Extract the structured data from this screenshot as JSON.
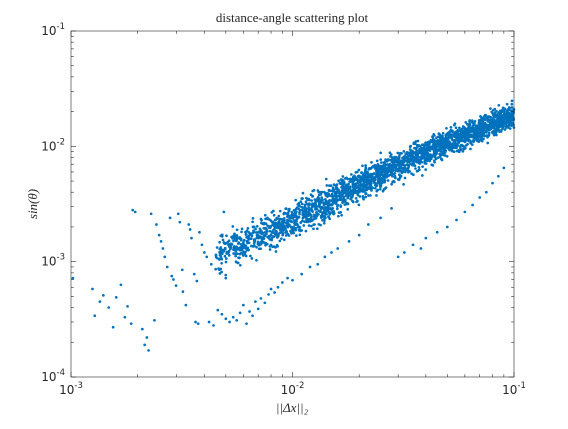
{
  "chart_data": {
    "type": "scatter",
    "title": "distance-angle scattering plot",
    "xlabel": "||Δx||₂",
    "ylabel": "sin(θ)",
    "x_scale": "log",
    "y_scale": "log",
    "xlim": [
      0.001,
      0.1
    ],
    "ylim": [
      0.0001,
      0.1
    ],
    "x_ticks": [
      {
        "value": 0.001,
        "base": "10",
        "exp": "-3"
      },
      {
        "value": 0.01,
        "base": "10",
        "exp": "-2"
      },
      {
        "value": 0.1,
        "base": "10",
        "exp": "-1"
      }
    ],
    "y_ticks": [
      {
        "value": 0.0001,
        "base": "10",
        "exp": "-4"
      },
      {
        "value": 0.001,
        "base": "10",
        "exp": "-3"
      },
      {
        "value": 0.01,
        "base": "10",
        "exp": "-2"
      },
      {
        "value": 0.1,
        "base": "10",
        "exp": "-1"
      }
    ],
    "grid": false,
    "box": true,
    "marker_color": "#0072BD",
    "points": [
      [
        0.00102,
        0.00072
      ],
      [
        0.00125,
        0.00058
      ],
      [
        0.00128,
        0.00034
      ],
      [
        0.00135,
        0.00045
      ],
      [
        0.0014,
        0.00051
      ],
      [
        0.00148,
        0.0004
      ],
      [
        0.00155,
        0.00027
      ],
      [
        0.0016,
        0.00049
      ],
      [
        0.00168,
        0.00063
      ],
      [
        0.00175,
        0.00033
      ],
      [
        0.0018,
        0.00041
      ],
      [
        0.00187,
        0.00029
      ],
      [
        0.0019,
        0.0028
      ],
      [
        0.00195,
        0.0027
      ],
      [
        0.0021,
        0.00026
      ],
      [
        0.00215,
        0.00019
      ],
      [
        0.0022,
        0.00022
      ],
      [
        0.00224,
        0.00017
      ],
      [
        0.0023,
        0.0026
      ],
      [
        0.00238,
        0.00031
      ],
      [
        0.00243,
        0.0021
      ],
      [
        0.0025,
        0.0017
      ],
      [
        0.00255,
        0.0015
      ],
      [
        0.0026,
        0.0013
      ],
      [
        0.00265,
        0.0011
      ],
      [
        0.00272,
        0.0009
      ],
      [
        0.0028,
        0.0024
      ],
      [
        0.00285,
        0.00075
      ],
      [
        0.0029,
        0.0007
      ],
      [
        0.00298,
        0.00062
      ],
      [
        0.00305,
        0.0026
      ],
      [
        0.0031,
        0.0022
      ],
      [
        0.00318,
        0.00085
      ],
      [
        0.0032,
        0.00055
      ],
      [
        0.0033,
        0.00042
      ],
      [
        0.0034,
        0.0021
      ],
      [
        0.00345,
        0.0019
      ],
      [
        0.0035,
        0.0016
      ],
      [
        0.0036,
        0.00078
      ],
      [
        0.00365,
        0.0003
      ],
      [
        0.0037,
        0.00068
      ],
      [
        0.00375,
        0.00029
      ],
      [
        0.0038,
        0.0018
      ],
      [
        0.0039,
        0.0014
      ],
      [
        0.004,
        0.0012
      ],
      [
        0.0041,
        0.0011
      ],
      [
        0.0042,
        0.0003
      ],
      [
        0.0043,
        0.00095
      ],
      [
        0.0044,
        0.00028
      ],
      [
        0.0045,
        0.00086
      ],
      [
        0.0046,
        0.00038
      ],
      [
        0.0047,
        0.00079
      ],
      [
        0.0048,
        0.00035
      ],
      [
        0.0049,
        0.0027
      ],
      [
        0.005,
        0.00032
      ],
      [
        0.0052,
        0.0003
      ],
      [
        0.0054,
        0.00033
      ],
      [
        0.0056,
        0.00031
      ],
      [
        0.0058,
        0.00036
      ],
      [
        0.006,
        0.00042
      ],
      [
        0.0062,
        0.00029
      ],
      [
        0.0064,
        0.00037
      ],
      [
        0.0066,
        0.00034
      ],
      [
        0.0068,
        0.00045
      ],
      [
        0.007,
        0.00039
      ],
      [
        0.0072,
        0.00048
      ],
      [
        0.0075,
        0.00044
      ],
      [
        0.0078,
        0.00052
      ],
      [
        0.008,
        0.00058
      ],
      [
        0.0083,
        0.00054
      ],
      [
        0.0086,
        0.0006
      ],
      [
        0.009,
        0.00066
      ],
      [
        0.0095,
        0.00072
      ],
      [
        0.01,
        0.00069
      ],
      [
        0.011,
        0.00078
      ],
      [
        0.012,
        0.0009
      ],
      [
        0.013,
        0.00095
      ],
      [
        0.014,
        0.0011
      ],
      [
        0.015,
        0.0012
      ],
      [
        0.016,
        0.0013
      ],
      [
        0.018,
        0.0015
      ],
      [
        0.02,
        0.0017
      ],
      [
        0.022,
        0.0021
      ],
      [
        0.025,
        0.0024
      ],
      [
        0.028,
        0.0029
      ],
      [
        0.03,
        0.0011
      ],
      [
        0.032,
        0.0012
      ],
      [
        0.035,
        0.0014
      ],
      [
        0.038,
        0.0013
      ],
      [
        0.04,
        0.0016
      ],
      [
        0.045,
        0.0018
      ],
      [
        0.05,
        0.002
      ],
      [
        0.055,
        0.0023
      ],
      [
        0.06,
        0.0027
      ],
      [
        0.065,
        0.0031
      ],
      [
        0.07,
        0.0036
      ],
      [
        0.075,
        0.004
      ],
      [
        0.08,
        0.0048
      ],
      [
        0.085,
        0.0055
      ],
      [
        0.09,
        0.0065
      ]
    ],
    "cloud": [
      {
        "x": 0.0045,
        "y_center": 0.00115,
        "spread": 0.28
      },
      {
        "x": 0.006,
        "y_center": 0.00145,
        "spread": 0.27
      },
      {
        "x": 0.008,
        "y_center": 0.0019,
        "spread": 0.26
      },
      {
        "x": 0.01,
        "y_center": 0.0023,
        "spread": 0.25
      },
      {
        "x": 0.013,
        "y_center": 0.003,
        "spread": 0.24
      },
      {
        "x": 0.016,
        "y_center": 0.0037,
        "spread": 0.23
      },
      {
        "x": 0.02,
        "y_center": 0.0046,
        "spread": 0.22
      },
      {
        "x": 0.025,
        "y_center": 0.0058,
        "spread": 0.21
      },
      {
        "x": 0.032,
        "y_center": 0.0072,
        "spread": 0.2
      },
      {
        "x": 0.04,
        "y_center": 0.0088,
        "spread": 0.19
      },
      {
        "x": 0.05,
        "y_center": 0.0107,
        "spread": 0.18
      },
      {
        "x": 0.063,
        "y_center": 0.013,
        "spread": 0.18
      },
      {
        "x": 0.08,
        "y_center": 0.0158,
        "spread": 0.17
      },
      {
        "x": 0.1,
        "y_center": 0.019,
        "spread": 0.17
      }
    ]
  }
}
